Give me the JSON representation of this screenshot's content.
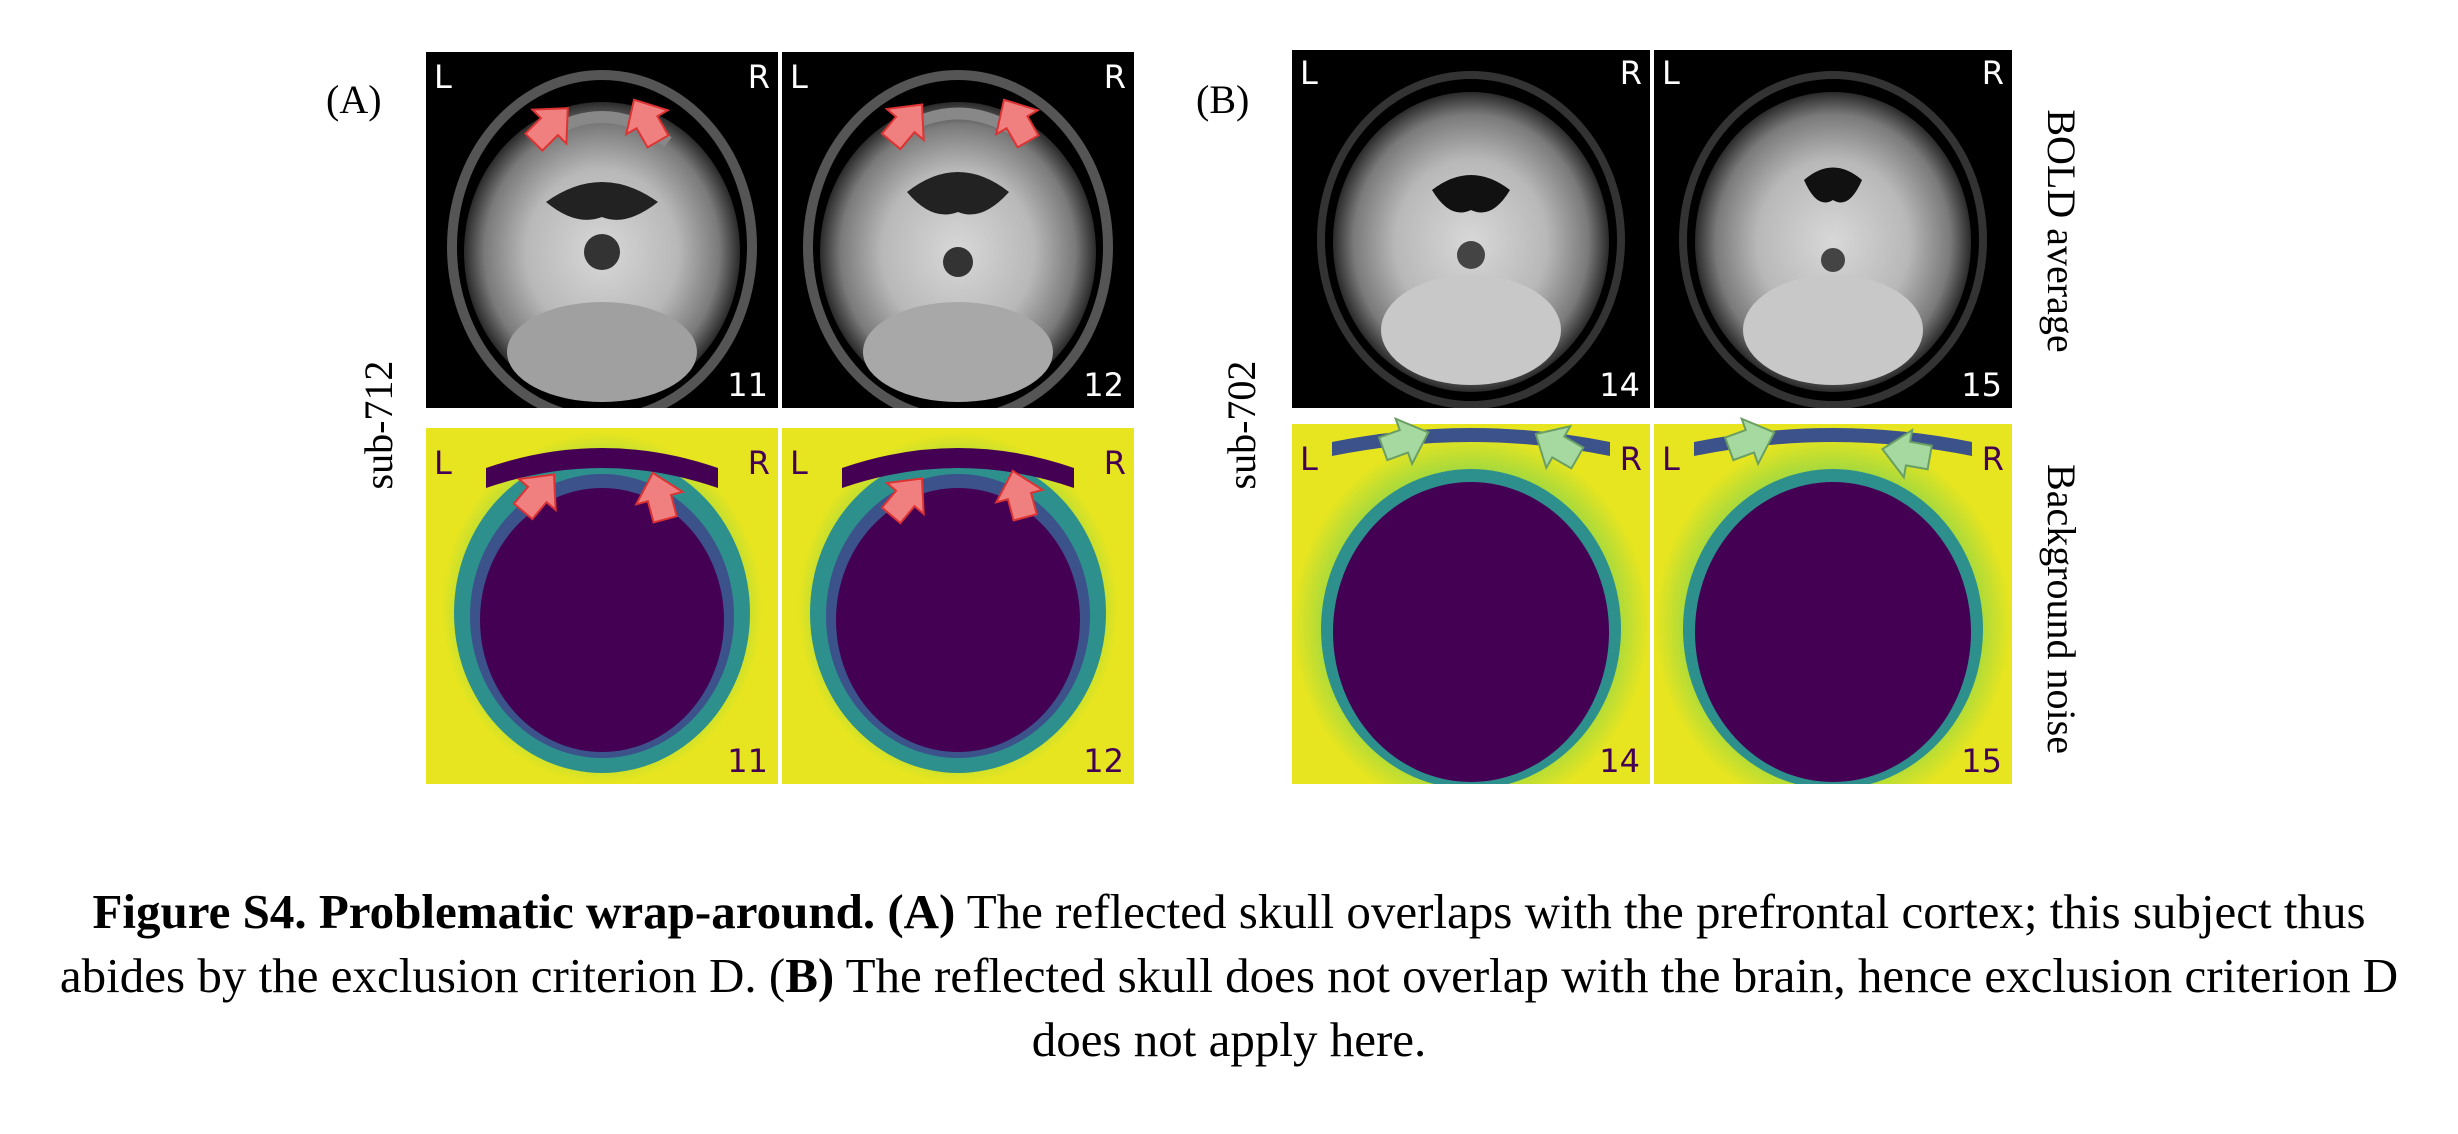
{
  "panels": {
    "a": {
      "label": "(A)",
      "subject": "sub-712"
    },
    "b": {
      "label": "(B)",
      "subject": "sub-702"
    }
  },
  "rows": {
    "top": "BOLD average",
    "bottom": "Background noise"
  },
  "orientation": {
    "left": "L",
    "right": "R"
  },
  "slices": {
    "a1": "11",
    "a2": "12",
    "b1": "14",
    "b2": "15"
  },
  "colors": {
    "bold_bg": "#000000",
    "noise_yellow": "#e7e51f",
    "noise_green": "#7ed250",
    "noise_teal": "#2d908c",
    "noise_purple": "#440154",
    "arrow_red": "#f08080",
    "arrow_green": "#a6d9a0"
  },
  "caption": {
    "title": "Figure S4. Problematic wrap-around.",
    "a_marker": "(A)",
    "a_text": "The reflected skull overlaps with the prefrontal cortex; this subject thus abides by the exclusion criterion D.",
    "b_open": "(",
    "b_marker": "B)",
    "b_text": "The reflected skull does not overlap with the brain, hence exclusion criterion D does not apply here."
  }
}
